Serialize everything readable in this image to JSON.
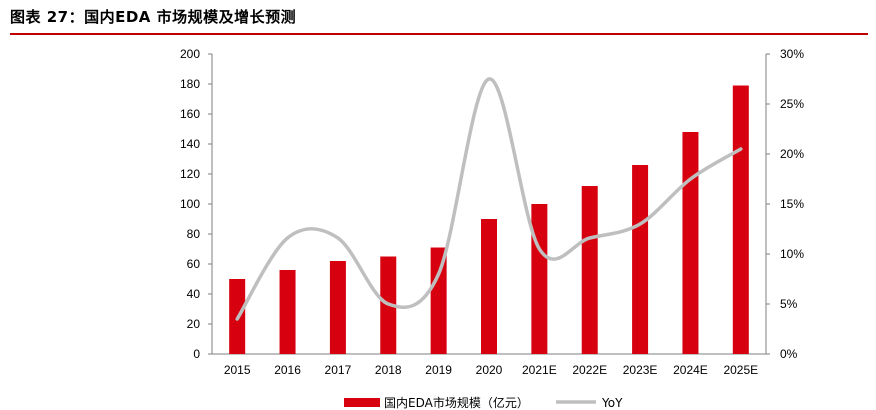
{
  "figure": {
    "title": "图表 27：国内EDA 市场规模及增长预测"
  },
  "chart_data": {
    "type": "bar",
    "categories": [
      "2015",
      "2016",
      "2017",
      "2018",
      "2019",
      "2020",
      "2021E",
      "2022E",
      "2023E",
      "2024E",
      "2025E"
    ],
    "series": [
      {
        "name": "国内EDA市场规模（亿元）",
        "type": "bar",
        "axis": "left",
        "values": [
          50,
          56,
          62,
          65,
          71,
          90,
          100,
          112,
          126,
          148,
          179
        ],
        "color": "#d7000f"
      },
      {
        "name": "YoY",
        "type": "line",
        "axis": "right",
        "values": [
          3.5,
          11.6,
          11.6,
          5.0,
          8.0,
          27.5,
          10.5,
          11.6,
          13.0,
          17.5,
          20.5
        ],
        "color": "#bfbfbf"
      }
    ],
    "y_left": {
      "min": 0,
      "max": 200,
      "step": 20,
      "tick_labels": [
        "0",
        "20",
        "40",
        "60",
        "80",
        "100",
        "120",
        "140",
        "160",
        "180",
        "200"
      ]
    },
    "y_right": {
      "min": 0,
      "max": 30,
      "step": 5,
      "tick_labels": [
        "0%",
        "5%",
        "10%",
        "15%",
        "20%",
        "25%",
        "30%"
      ]
    },
    "grid": false,
    "legend": {
      "position": "bottom"
    }
  }
}
